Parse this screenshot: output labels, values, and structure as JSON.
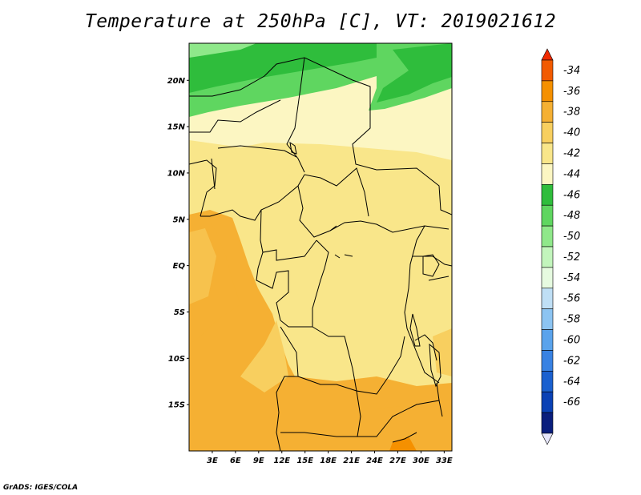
{
  "title": "Temperature at 250hPa [C], VT: 2019021612",
  "credit": "GrADS: IGES/COLA",
  "map": {
    "lat_range": [
      -20,
      24
    ],
    "lon_range": [
      0,
      34
    ],
    "lat_labels": [
      "20N",
      "15N",
      "10N",
      "5N",
      "EQ",
      "5S",
      "10S",
      "15S"
    ],
    "lat_values": [
      20,
      15,
      10,
      5,
      0,
      -5,
      -10,
      -15
    ],
    "lon_labels": [
      "3E",
      "6E",
      "9E",
      "12E",
      "15E",
      "18E",
      "21E",
      "24E",
      "27E",
      "30E",
      "33E"
    ],
    "lon_values": [
      3,
      6,
      9,
      12,
      15,
      18,
      21,
      24,
      27,
      30,
      33
    ]
  },
  "colorbar": {
    "labels": [
      "-34",
      "-36",
      "-38",
      "-40",
      "-42",
      "-44",
      "-46",
      "-48",
      "-50",
      "-52",
      "-54",
      "-56",
      "-58",
      "-60",
      "-62",
      "-64",
      "-66"
    ],
    "colors": [
      "#f25a00",
      "#f59000",
      "#f5b033",
      "#f8cf5f",
      "#f9e68a",
      "#fcf6c2",
      "#2fbd3c",
      "#5fd660",
      "#8fe88a",
      "#c2f5bc",
      "#e6fae0",
      "#bfdff5",
      "#8cc4f2",
      "#5aa3ec",
      "#3882e3",
      "#1a60cf",
      "#0a41b5",
      "#0a1e7d"
    ],
    "top_color": "#f02a00",
    "bottom_color": "#e6e6fa"
  }
}
